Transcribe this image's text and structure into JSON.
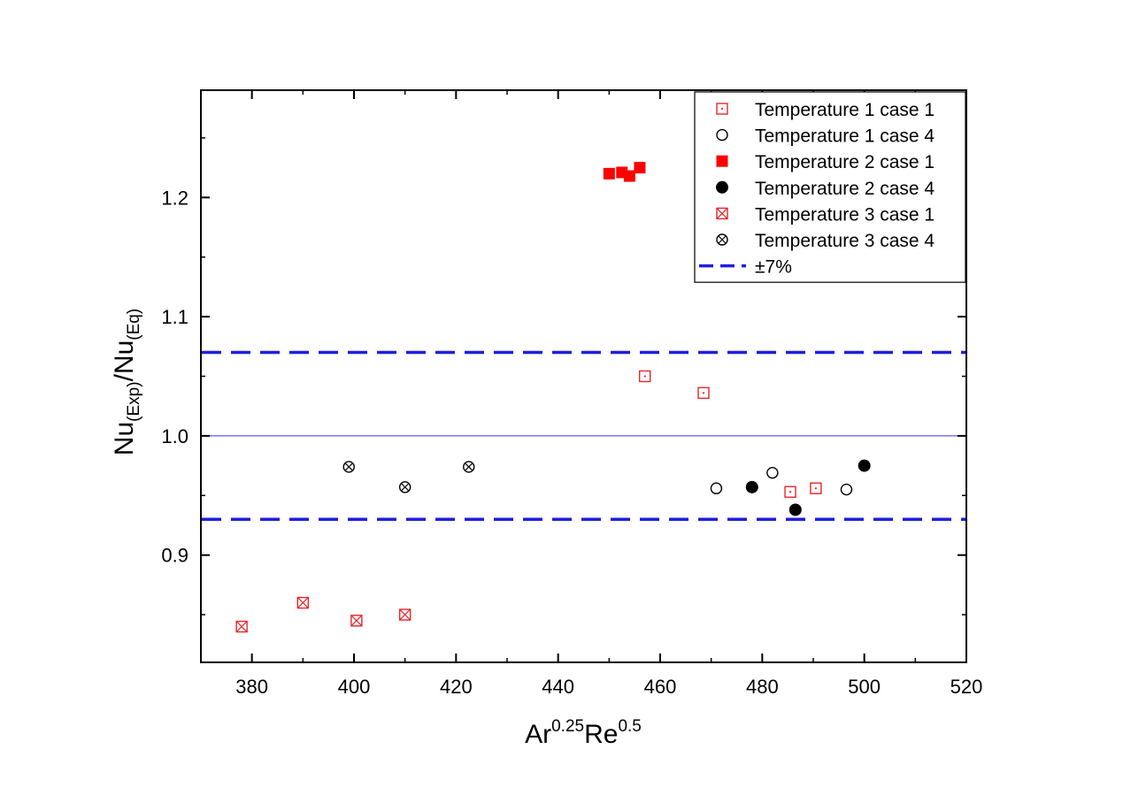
{
  "chart_data": {
    "type": "scatter",
    "title": "",
    "xlabel": {
      "base1": "Ar",
      "sup1": "0.25",
      "base2": "Re",
      "sup2": "0.5"
    },
    "ylabel": {
      "base1": "Nu",
      "sub1": "(Exp)",
      "sep": "/",
      "base2": "Nu",
      "sub2": "(Eq)"
    },
    "xlim": [
      370,
      520
    ],
    "ylim": [
      0.81,
      1.29
    ],
    "x_ticks": [
      380,
      400,
      420,
      440,
      460,
      480,
      500,
      520
    ],
    "y_ticks": [
      0.9,
      1.0,
      1.1,
      1.2
    ],
    "x_tick_labels": [
      "380",
      "400",
      "420",
      "440",
      "460",
      "480",
      "500",
      "520"
    ],
    "y_tick_labels": [
      "0.9",
      "1.0",
      "1.1",
      "1.2"
    ],
    "legend_position": "top-right",
    "series": [
      {
        "name": "Temperature 1 case 1",
        "marker": "open-square-dot",
        "color": "#e8262a",
        "x": [
          457,
          468.5,
          485.5,
          490.5
        ],
        "y": [
          1.05,
          1.036,
          0.953,
          0.956
        ]
      },
      {
        "name": "Temperature 1 case 4",
        "marker": "open-circle",
        "color": "#000000",
        "x": [
          471,
          482,
          496.5
        ],
        "y": [
          0.956,
          0.969,
          0.955
        ]
      },
      {
        "name": "Temperature 2 case 1",
        "marker": "filled-square",
        "color": "#ff0000",
        "x": [
          450,
          452.5,
          454,
          456
        ],
        "y": [
          1.22,
          1.221,
          1.218,
          1.225
        ]
      },
      {
        "name": "Temperature 2 case 4",
        "marker": "filled-circle",
        "color": "#000000",
        "x": [
          478,
          486.5,
          500
        ],
        "y": [
          0.957,
          0.938,
          0.975
        ]
      },
      {
        "name": "Temperature 3 case 1",
        "marker": "crossed-square",
        "color": "#e8262a",
        "x": [
          378,
          390,
          400.5,
          410
        ],
        "y": [
          0.84,
          0.86,
          0.845,
          0.85
        ]
      },
      {
        "name": "Temperature 3 case 4",
        "marker": "crossed-circle",
        "color": "#000000",
        "x": [
          399,
          410,
          422.5
        ],
        "y": [
          0.974,
          0.957,
          0.974
        ]
      }
    ],
    "reference_lines": [
      {
        "name": "±7%",
        "style": "dashed",
        "color": "#1f1fe0",
        "values": [
          1.07,
          0.93
        ],
        "in_legend": true
      },
      {
        "style": "thin",
        "color": "#3030e8",
        "values": [
          1.0
        ],
        "in_legend": false
      }
    ]
  }
}
